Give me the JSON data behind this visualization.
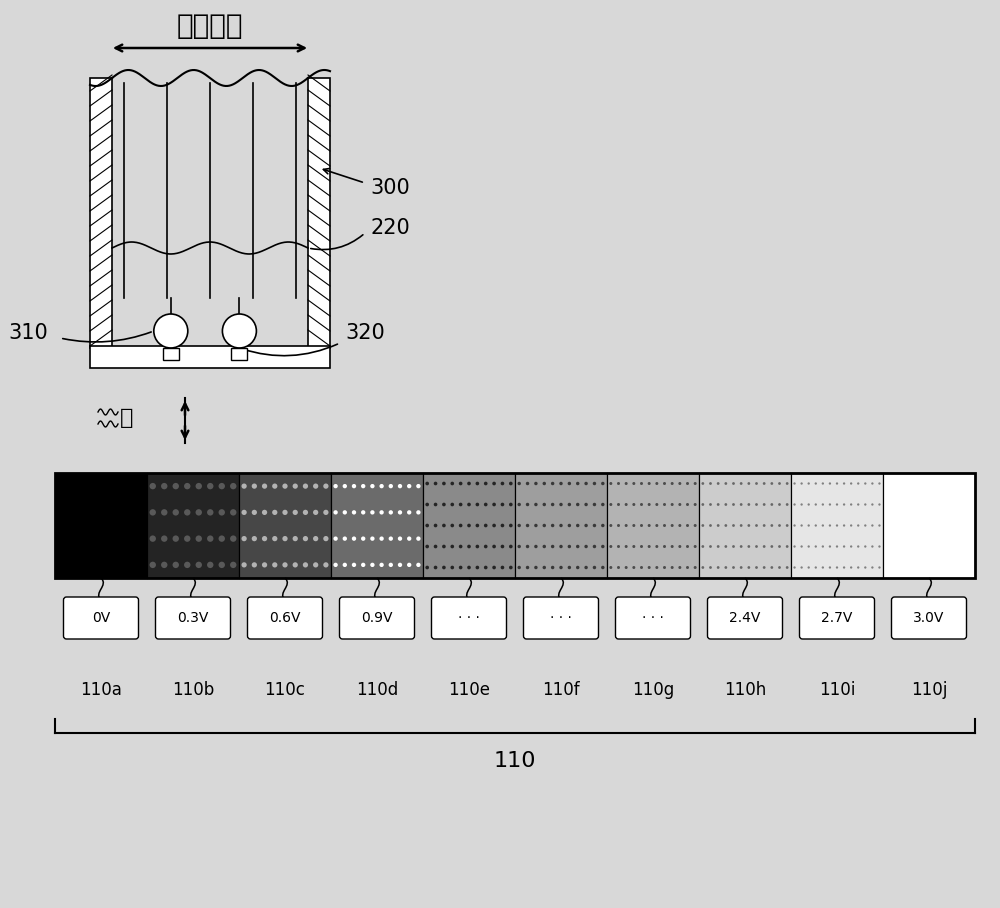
{
  "bg_color": "#d8d8d8",
  "title_text": "第一方向",
  "light_label": "光",
  "segment_labels": [
    "0V",
    "0.3V",
    "0.6V",
    "0.9V",
    "· · ·",
    "· · ·",
    "· · ·",
    "2.4V",
    "2.7V",
    "3.0V"
  ],
  "segment_ids": [
    "110a",
    "110b",
    "110c",
    "110d",
    "110e",
    "110f",
    "110g",
    "110h",
    "110i",
    "110j"
  ],
  "segment_grays": [
    0.0,
    0.14,
    0.28,
    0.42,
    0.54,
    0.62,
    0.7,
    0.8,
    0.9,
    1.0
  ],
  "label_300": "300",
  "label_220": "220",
  "label_310": "310",
  "label_320": "320",
  "label_110": "110",
  "fig_width": 10.0,
  "fig_height": 9.08,
  "dpi": 100
}
